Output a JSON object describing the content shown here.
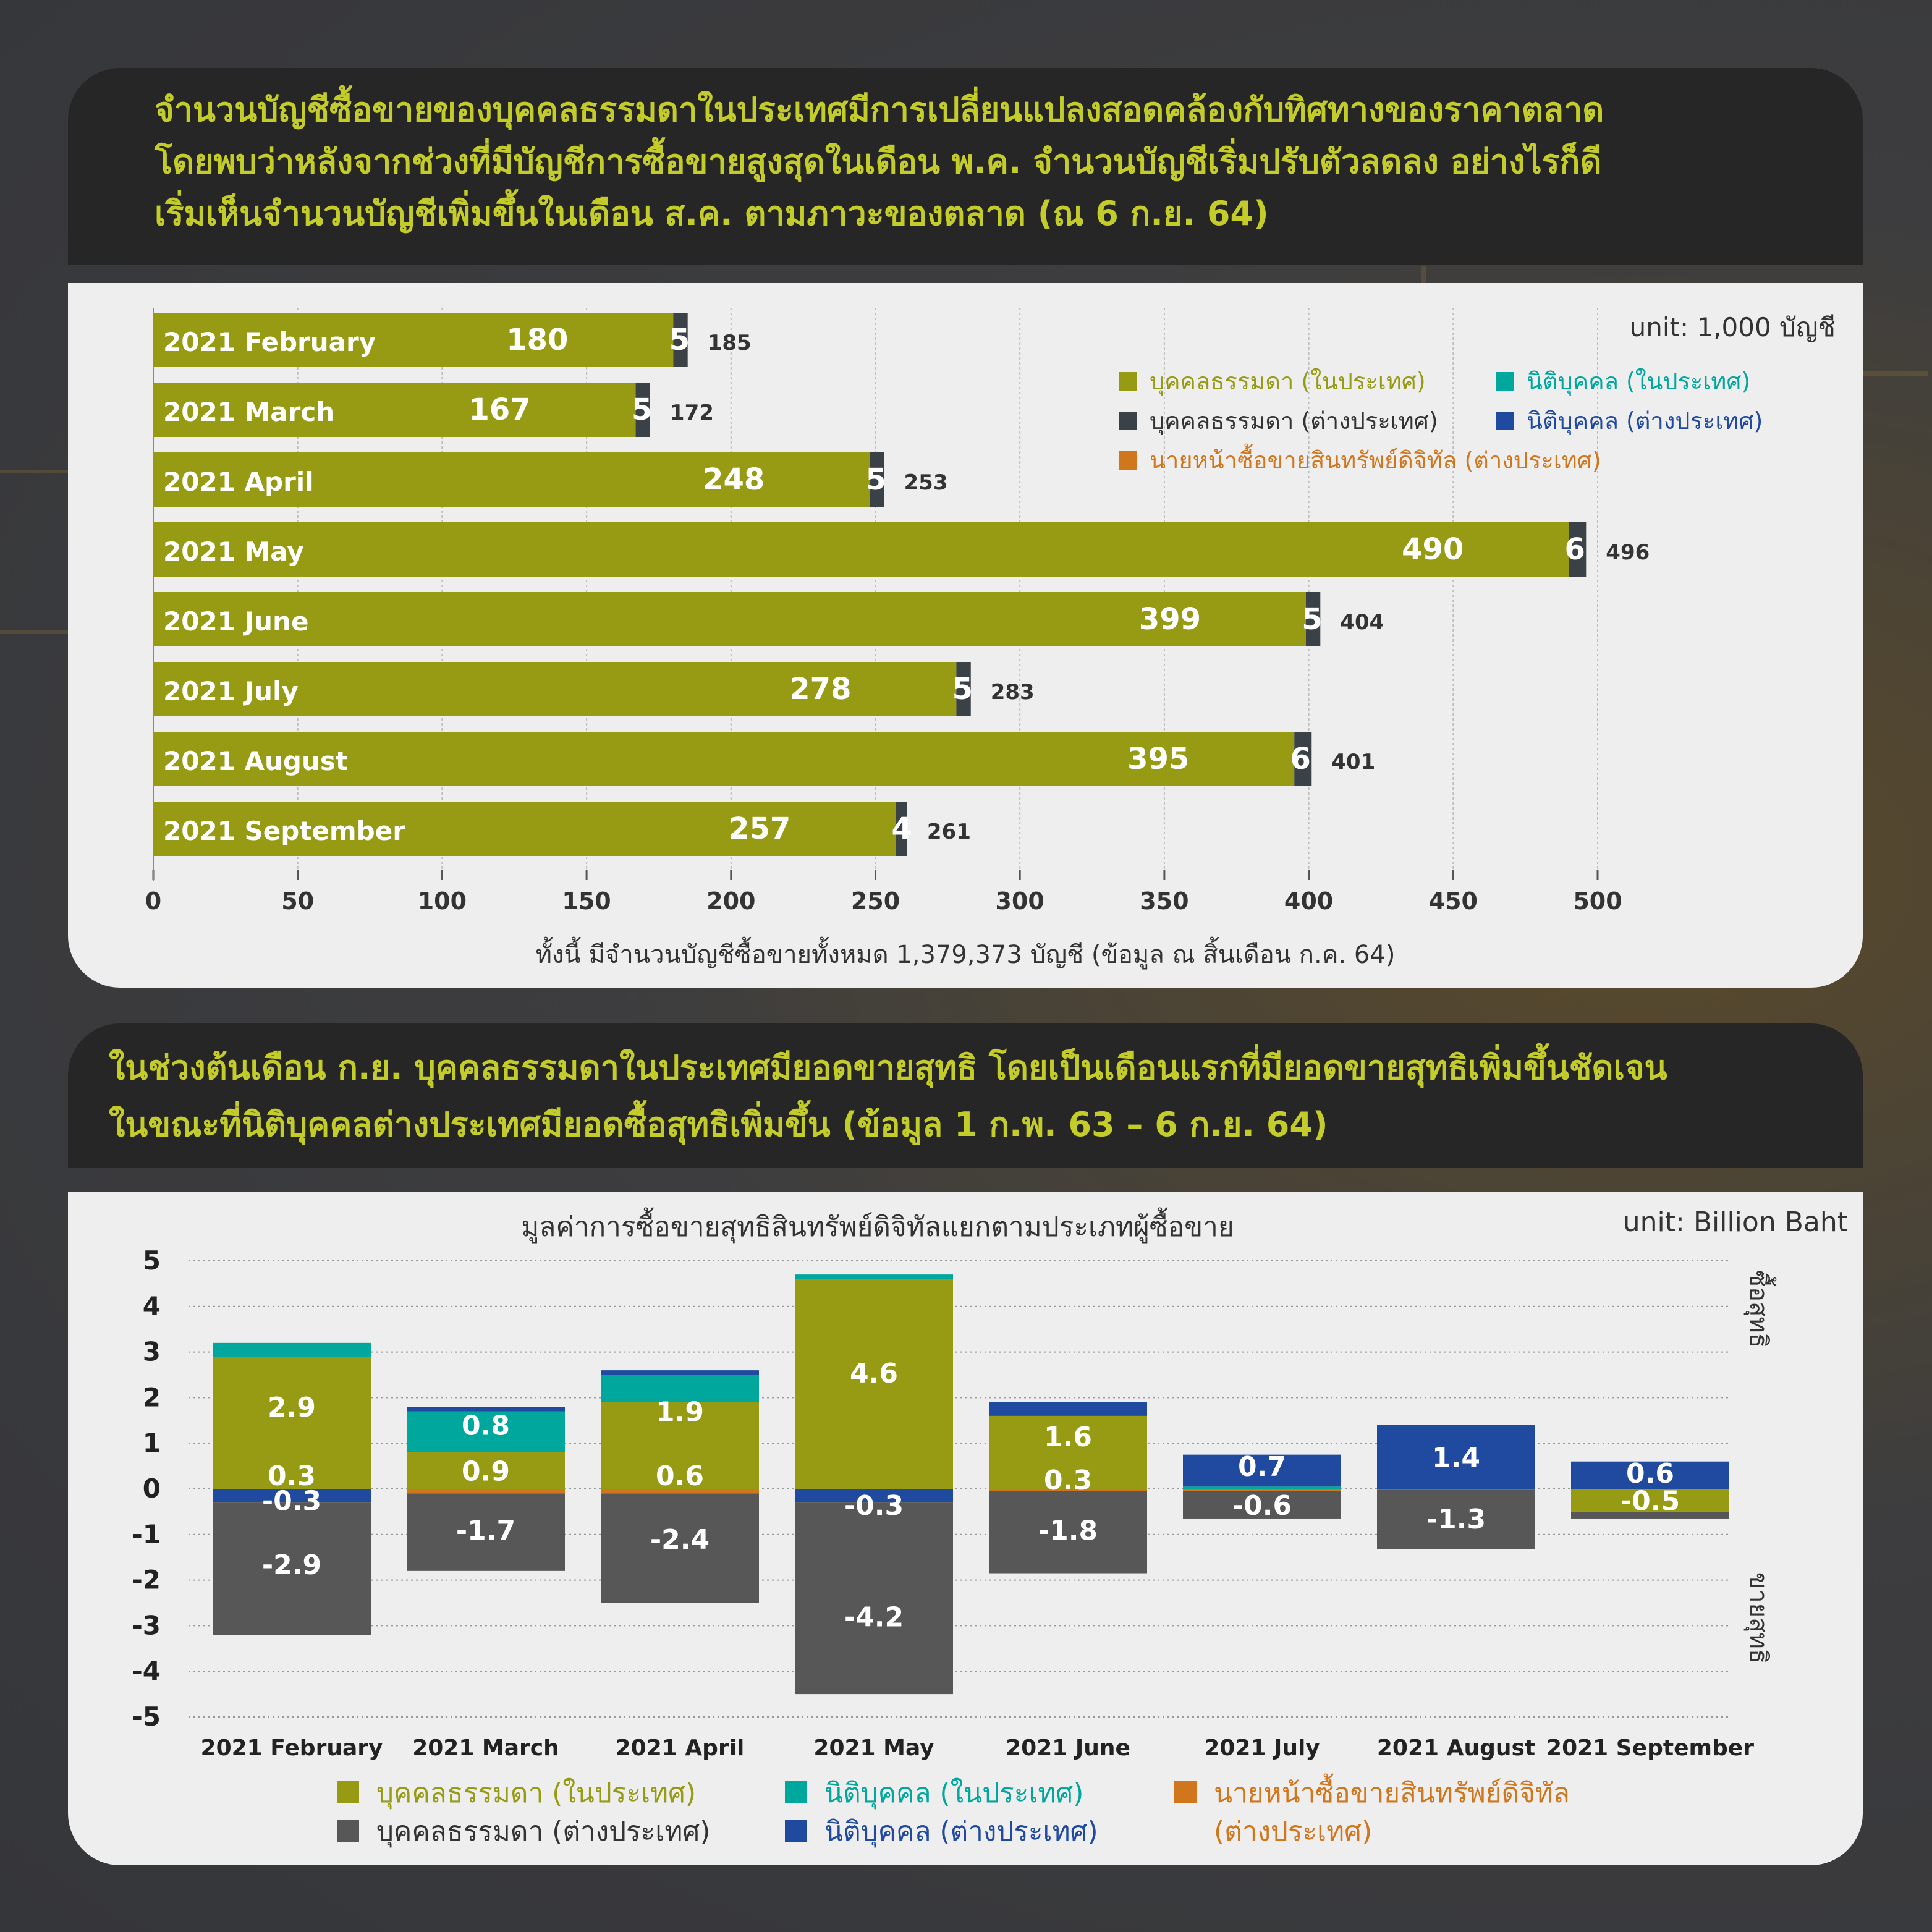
{
  "top": {
    "headline": [
      "จำนวนบัญชีซื้อขายของบุคคลธรรมดาในประเทศมีการเปลี่ยนแปลงสอดคล้องกับทิศทางของราคาตลาด",
      "โดยพบว่าหลังจากช่วงที่มีบัญชีการซื้อขายสูงสุดในเดือน พ.ค. จำนวนบัญชีเริ่มปรับตัวลดลง อย่างไรก็ดี",
      "เริ่มเห็นจำนวนบัญชีเพิ่มขึ้นในเดือน ส.ค. ตามภาวะของตลาด (ณ 6 ก.ย. 64)"
    ],
    "unit": "unit: 1,000 บัญชี",
    "footnote": "ทั้งนี้ มีจำนวนบัญชีซื้อขายทั้งหมด 1,379,373 บัญชี (ข้อมูล ณ สิ้นเดือน ก.ค. 64)",
    "legend": [
      {
        "label": "บุคคลธรรมดา (ในประเทศ)",
        "color": "#979b14"
      },
      {
        "label": "นิติบุคคล (ในประเทศ)",
        "color": "#00a79d"
      },
      {
        "label": "บุคคลธรรมดา (ต่างประเทศ)",
        "color": "#3a4248"
      },
      {
        "label": "นิติบุคคล (ต่างประเทศ)",
        "color": "#1f4aa0"
      },
      {
        "label": "นายหน้าซื้อขายสินทรัพย์ดิจิทัล (ต่างประเทศ)",
        "color": "#d0761d"
      }
    ]
  },
  "chart_data": [
    {
      "type": "bar",
      "orientation": "horizontal",
      "stacked": true,
      "categories": [
        "2021 February",
        "2021 March",
        "2021 April",
        "2021 May",
        "2021 June",
        "2021 July",
        "2021 August",
        "2021 September"
      ],
      "series": [
        {
          "name": "บุคคลธรรมดา (ในประเทศ)",
          "color": "#979b14",
          "values": [
            180,
            167,
            248,
            490,
            399,
            278,
            395,
            257
          ]
        },
        {
          "name": "บุคคลธรรมดา (ต่างประเทศ)",
          "color": "#3a4248",
          "values": [
            5,
            5,
            5,
            6,
            5,
            5,
            6,
            4
          ]
        }
      ],
      "totals": [
        185,
        172,
        253,
        496,
        404,
        283,
        401,
        261
      ],
      "xlim": [
        0,
        500
      ],
      "xticks": [
        0,
        50,
        100,
        150,
        200,
        250,
        300,
        350,
        400,
        450,
        500
      ],
      "grid": true,
      "legend_position": "top-right"
    },
    {
      "type": "bar",
      "orientation": "vertical",
      "stacked": true,
      "title": "มูลค่าการซื้อขายสุทธิสินทรัพย์ดิจิทัลแยกตามประเภทผู้ซื้อขาย",
      "unit": "unit: Billion Baht",
      "categories": [
        "2021 February",
        "2021 March",
        "2021 April",
        "2021 May",
        "2021 June",
        "2021 July",
        "2021 August",
        "2021 September"
      ],
      "series": [
        {
          "name": "บุคคลธรรมดา (ในประเทศ)",
          "color": "#979b14",
          "values": [
            2.9,
            0.8,
            1.9,
            4.6,
            1.6,
            0.0,
            0.0,
            -0.5
          ]
        },
        {
          "name": "นิติบุคคล (ในประเทศ)",
          "color": "#00a79d",
          "values": [
            0.3,
            0.9,
            0.6,
            0.1,
            0.0,
            0.05,
            0.0,
            0.0
          ]
        },
        {
          "name": "นิติบุคคล (ต่างประเทศ)",
          "color": "#1f4aa0",
          "values": [
            -0.3,
            0.1,
            0.1,
            -0.3,
            0.3,
            0.7,
            1.4,
            0.6
          ]
        },
        {
          "name": "นายหน้าซื้อขายสินทรัพย์ดิจิทัล (ต่างประเทศ)",
          "color": "#d0761d",
          "values": [
            0.0,
            -0.1,
            -0.1,
            0.0,
            -0.05,
            -0.05,
            -0.02,
            0.0
          ]
        },
        {
          "name": "บุคคลธรรมดา (ต่างประเทศ)",
          "color": "#575757",
          "values": [
            -2.9,
            -1.7,
            -2.4,
            -4.2,
            -1.8,
            -0.6,
            -1.3,
            -0.15
          ]
        }
      ],
      "labels": [
        [
          {
            "v": "2.9",
            "y": 1.8
          },
          {
            "v": "0.3",
            "y": 0.3
          },
          {
            "v": "-0.3",
            "y": -0.25
          },
          {
            "v": "-2.9",
            "y": -1.65
          }
        ],
        [
          {
            "v": "0.8",
            "y": 1.4
          },
          {
            "v": "0.9",
            "y": 0.4
          },
          {
            "v": "-1.7",
            "y": -0.9
          }
        ],
        [
          {
            "v": "1.9",
            "y": 1.7
          },
          {
            "v": "0.6",
            "y": 0.3
          },
          {
            "v": "-2.4",
            "y": -1.1
          }
        ],
        [
          {
            "v": "4.6",
            "y": 2.55
          },
          {
            "v": "-0.3",
            "y": -0.35
          },
          {
            "v": "-4.2",
            "y": -2.8
          }
        ],
        [
          {
            "v": "1.6",
            "y": 1.15
          },
          {
            "v": "0.3",
            "y": 0.2
          },
          {
            "v": "-1.8",
            "y": -0.9
          }
        ],
        [
          {
            "v": "0.7",
            "y": 0.5
          },
          {
            "v": "-0.6",
            "y": -0.35
          }
        ],
        [
          {
            "v": "1.4",
            "y": 0.7
          },
          {
            "v": "-1.3",
            "y": -0.65
          }
        ],
        [
          {
            "v": "0.6",
            "y": 0.35
          },
          {
            "v": "-0.5",
            "y": -0.25
          }
        ]
      ],
      "ylim": [
        -5,
        5
      ],
      "yticks": [
        5,
        4,
        3,
        2,
        1,
        0,
        -1,
        -2,
        -3,
        -4,
        -5
      ],
      "side_labels": {
        "top": "ซื้อสุทธิ",
        "bottom": "ขายสุทธิ"
      },
      "grid": true,
      "legend_position": "bottom"
    }
  ],
  "bottom": {
    "headline": [
      "ในช่วงต้นเดือน ก.ย. บุคคลธรรมดาในประเทศมียอดขายสุทธิ โดยเป็นเดือนแรกที่มียอดขายสุทธิเพิ่มขึ้นชัดเจน",
      "ในขณะที่นิติบุคคลต่างประเทศมียอดซื้อสุทธิเพิ่มขึ้น (ข้อมูล 1 ก.พ. 63 – 6 ก.ย. 64)"
    ],
    "legend": [
      {
        "label": "บุคคลธรรมดา (ในประเทศ)",
        "color": "#979b14"
      },
      {
        "label": "นิติบุคคล (ในประเทศ)",
        "color": "#00a79d"
      },
      {
        "label": "นายหน้าซื้อขายสินทรัพย์ดิจิทัล",
        "label2": "(ต่างประเทศ)",
        "color": "#d0761d"
      },
      {
        "label": "บุคคลธรรมดา (ต่างประเทศ)",
        "color": "#575757"
      },
      {
        "label": "นิติบุคคล (ต่างประเทศ)",
        "color": "#1f4aa0"
      }
    ]
  }
}
